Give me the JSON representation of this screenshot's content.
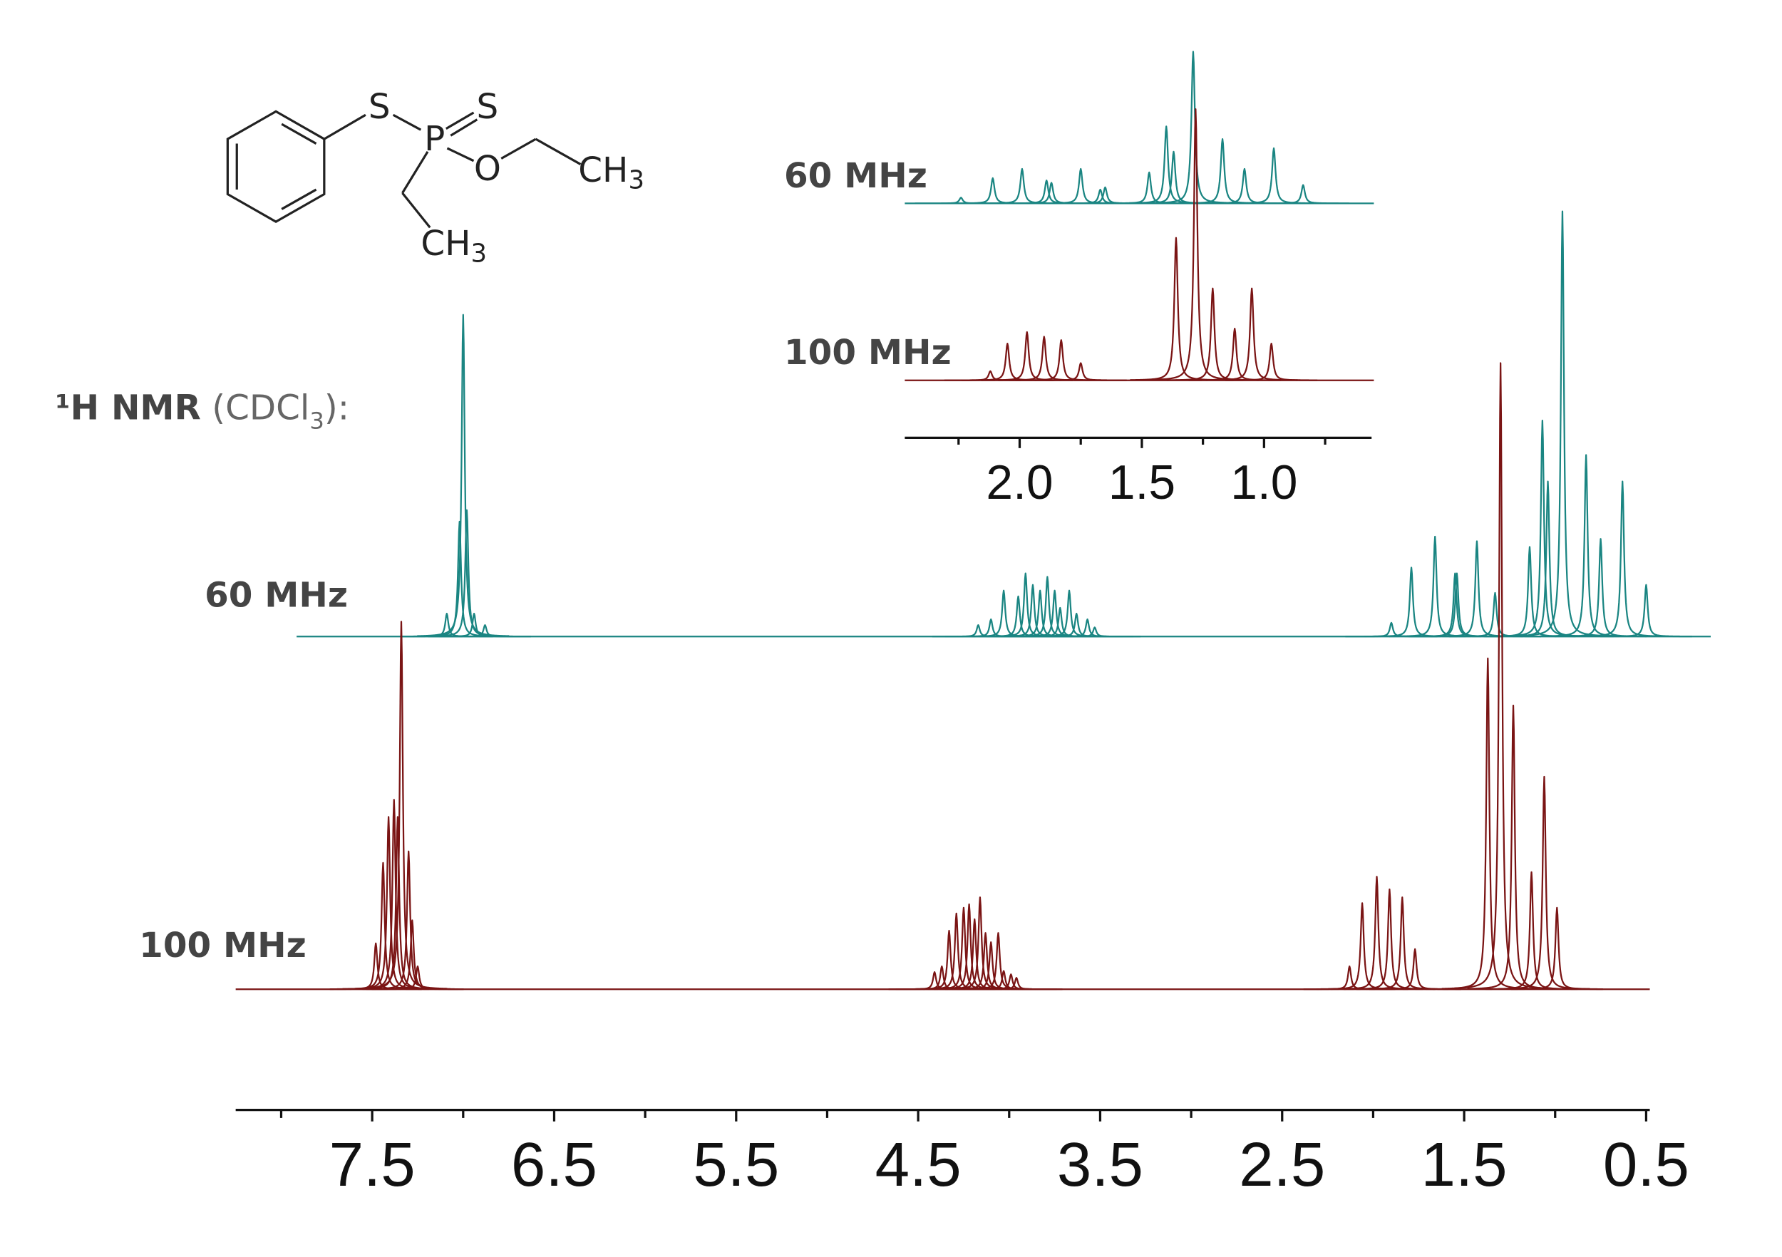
{
  "structure": {
    "atoms": [
      "S",
      "P",
      "S",
      "O",
      "CH",
      "3",
      "CH",
      "3"
    ]
  },
  "chart_data": [
    {
      "type": "spectrum",
      "annotation": {
        "nucleus": "¹H NMR",
        "solvent": "(CDCl",
        "subscript": "3",
        "suffix": "):"
      },
      "xlim": [
        8.25,
        0.48
      ],
      "xticks": [
        7.5,
        6.5,
        5.5,
        4.5,
        3.5,
        2.5,
        1.5,
        0.5
      ],
      "minor_xticks": [
        8,
        7,
        6,
        5,
        4,
        3,
        2,
        1
      ],
      "series": [
        {
          "name": "60 MHz",
          "color": "#1a8582",
          "x": [
            7.09,
            7.02,
            7.0,
            6.98,
            6.94,
            6.88,
            4.17,
            4.1,
            4.03,
            3.95,
            3.91,
            3.87,
            3.83,
            3.79,
            3.75,
            3.72,
            3.67,
            3.63,
            3.57,
            3.53,
            1.9,
            1.79,
            1.66,
            1.55,
            1.54,
            1.43,
            1.33,
            1.14,
            1.07,
            1.04,
            0.96,
            0.83,
            0.75,
            0.63,
            0.5
          ],
          "values": [
            20,
            100,
            280,
            110,
            20,
            10,
            10,
            15,
            40,
            35,
            55,
            45,
            40,
            52,
            40,
            25,
            40,
            20,
            15,
            8,
            12,
            60,
            87,
            55,
            55,
            83,
            38,
            78,
            188,
            135,
            370,
            158,
            85,
            135,
            45
          ]
        },
        {
          "name": "100 MHz",
          "color": "#7a1414",
          "x": [
            7.48,
            7.44,
            7.41,
            7.38,
            7.36,
            7.34,
            7.3,
            7.28,
            7.25,
            4.41,
            4.37,
            4.33,
            4.29,
            4.25,
            4.22,
            4.19,
            4.16,
            4.13,
            4.1,
            4.06,
            4.03,
            3.99,
            3.96,
            2.13,
            2.06,
            1.98,
            1.91,
            1.84,
            1.77,
            1.37,
            1.3,
            1.23,
            1.13,
            1.06,
            0.99
          ],
          "values": [
            40,
            110,
            150,
            165,
            150,
            320,
            120,
            60,
            20,
            15,
            20,
            51,
            66,
            71,
            74,
            61,
            80,
            49,
            41,
            49,
            16,
            13,
            10,
            20,
            75,
            98,
            87,
            80,
            35,
            288,
            545,
            247,
            102,
            185,
            71
          ]
        }
      ]
    },
    {
      "type": "spectrum",
      "xlim": [
        2.47,
        0.56
      ],
      "xticks": [
        {
          "value": 2,
          "label": "2.0"
        },
        1.5,
        {
          "value": 1,
          "label": "1.0"
        }
      ],
      "minor_xticks": [
        2.25,
        1.75,
        1.25,
        0.75
      ],
      "series": [
        {
          "name": "60 MHz",
          "color": "#1a8582",
          "x": [
            2.24,
            2.11,
            1.99,
            1.89,
            1.87,
            1.75,
            1.67,
            1.65,
            1.47,
            1.4,
            1.37,
            1.29,
            1.17,
            1.08,
            0.96,
            0.84
          ],
          "values": [
            5,
            22,
            30,
            20,
            18,
            30,
            12,
            14,
            27,
            67,
            45,
            132,
            56,
            30,
            48,
            16
          ]
        },
        {
          "name": "100 MHz",
          "color": "#7a1414",
          "x": [
            2.12,
            2.05,
            1.97,
            1.9,
            1.83,
            1.75,
            1.36,
            1.28,
            1.21,
            1.12,
            1.05,
            0.97
          ],
          "values": [
            8,
            32,
            42,
            38,
            35,
            15,
            124,
            236,
            80,
            45,
            80,
            32
          ]
        }
      ]
    }
  ]
}
